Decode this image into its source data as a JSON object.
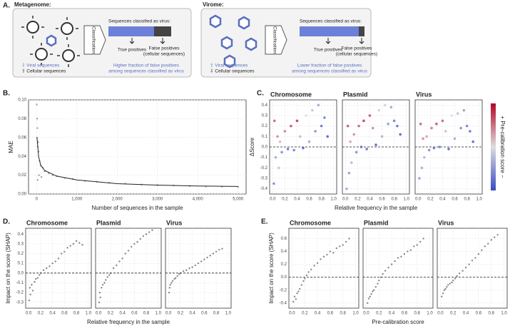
{
  "panel_a": {
    "label": "A.",
    "metagenome": {
      "title": "Metagenome:",
      "classification": "Classification",
      "classified": "Sequences classified as virus:",
      "true_pos": "True positives",
      "false_pos": [
        "False positives",
        "(cellular sequences)"
      ],
      "legend": [
        "⇩ Viral sequences",
        "⇧ Cellular sequences"
      ],
      "note": [
        "Higher fraction of false positives",
        "among sequences classified as virus"
      ]
    },
    "virome": {
      "title": "Virome:",
      "classification": "Classification",
      "classified": "Sequences classified as virus:",
      "true_pos": "True positives",
      "false_pos": [
        "False positives",
        "(cellular sequences)"
      ],
      "legend": [
        "⇧ Viral sequences",
        "⇩ Cellular sequences"
      ],
      "note": [
        "Lower fraction of false positives",
        "among sequences classified as virus"
      ]
    }
  },
  "chart_data": [
    {
      "type": "scatter",
      "label": "B.",
      "xlabel": "Number of sequences in the sample",
      "ylabel": "MAE",
      "grid": true,
      "point_color": "#777",
      "xlim": [
        -200,
        5200
      ],
      "ylim": [
        0,
        0.1
      ],
      "xticks": [
        0,
        {
          "value": 1000,
          "label": "1,000"
        },
        {
          "value": 2000,
          "label": "2,000"
        },
        {
          "value": 3000,
          "label": "3,000"
        },
        {
          "value": 4000,
          "label": "4,000"
        },
        {
          "value": 5000,
          "label": "5,000"
        }
      ],
      "yticks": [
        {
          "value": 0,
          "label": "0.00"
        },
        0.02,
        0.04,
        0.06,
        0.08,
        {
          "value": 0.1,
          "label": "0.10"
        }
      ],
      "facets": [
        {
          "x": [
            5,
            10,
            15,
            20,
            30,
            40,
            50,
            75,
            100,
            150,
            200,
            300,
            400,
            500,
            700,
            900,
            1200,
            1500,
            1800,
            2200,
            2600,
            3000,
            3400,
            3800,
            4200,
            4600,
            5000,
            25,
            60,
            120
          ],
          "y": [
            0.095,
            0.06,
            0.08,
            0.07,
            0.05,
            0.055,
            0.045,
            0.035,
            0.03,
            0.028,
            0.024,
            0.022,
            0.02,
            0.019,
            0.017,
            0.016,
            0.014,
            0.013,
            0.012,
            0.011,
            0.01,
            0.0095,
            0.009,
            0.0085,
            0.008,
            0.0078,
            0.0075,
            0.015,
            0.02,
            0.018
          ]
        }
      ],
      "fit": {
        "x": [
          10,
          50,
          100,
          200,
          500,
          1000,
          2000,
          3000,
          4000,
          5000
        ],
        "y": [
          0.06,
          0.04,
          0.031,
          0.025,
          0.019,
          0.015,
          0.011,
          0.0095,
          0.0085,
          0.008
        ],
        "color": "#222"
      }
    },
    {
      "type": "scatter",
      "label": "C.",
      "xlabel": "Relative frequency in the sample",
      "ylabel": "ΔScore",
      "grid": true,
      "reference_line": 0,
      "colormap": [
        "#3b4cc0",
        "#dddddd",
        "#b40426"
      ],
      "colorbar_label": "+ Pre-calibration score −",
      "xlim": [
        -0.05,
        1.05
      ],
      "ylim": [
        -0.45,
        0.45
      ],
      "xticks": [
        {
          "value": 0,
          "label": "0.0"
        },
        0.2,
        0.4,
        0.6,
        0.8,
        {
          "value": 1,
          "label": "1.0"
        }
      ],
      "yticks": [
        -0.4,
        -0.3,
        -0.2,
        -0.1,
        {
          "value": 0,
          "label": "0.0"
        },
        0.1,
        0.2,
        0.3,
        0.4
      ],
      "facets": [
        {
          "title": "Chromosome",
          "title_color": "#333",
          "x": [
            0.02,
            0.03,
            0.05,
            0.08,
            0.1,
            0.12,
            0.15,
            0.2,
            0.25,
            0.3,
            0.35,
            0.4,
            0.45,
            0.5,
            0.55,
            0.6,
            0.65,
            0.7,
            0.75,
            0.8,
            0.85,
            0.9
          ],
          "y": [
            -0.35,
            0.25,
            -0.1,
            0.1,
            -0.2,
            0.05,
            -0.05,
            0.15,
            -0.02,
            0.2,
            -0.03,
            0.25,
            0.1,
            -0.01,
            0.3,
            0.05,
            0.35,
            0.15,
            0.4,
            0.2,
            0.28,
            0.1
          ],
          "score": [
            0.2,
            0.8,
            0.3,
            0.7,
            0.4,
            0.6,
            0.2,
            0.75,
            0.1,
            0.85,
            0.15,
            0.9,
            0.6,
            0.05,
            0.5,
            0.3,
            0.4,
            0.2,
            0.3,
            0.1,
            0.15,
            0.05
          ]
        },
        {
          "title": "Plasmid",
          "title_color": "#d6456b",
          "x": [
            0.02,
            0.04,
            0.06,
            0.08,
            0.1,
            0.14,
            0.18,
            0.22,
            0.26,
            0.3,
            0.35,
            0.4,
            0.45,
            0.5,
            0.55,
            0.6,
            0.65,
            0.7,
            0.75,
            0.8,
            0.85,
            0.9
          ],
          "y": [
            -0.4,
            0.2,
            -0.25,
            0.05,
            -0.15,
            0.12,
            -0.05,
            0.2,
            0.0,
            0.25,
            -0.02,
            0.3,
            0.18,
            0.02,
            0.35,
            0.1,
            0.4,
            0.22,
            0.38,
            0.25,
            0.2,
            0.12
          ],
          "score": [
            0.3,
            0.85,
            0.25,
            0.65,
            0.35,
            0.7,
            0.2,
            0.8,
            0.1,
            0.9,
            0.1,
            0.85,
            0.7,
            0.05,
            0.55,
            0.35,
            0.45,
            0.25,
            0.3,
            0.15,
            0.1,
            0.05
          ]
        },
        {
          "title": "Virus",
          "title_color": "#5a6fc0",
          "x": [
            0.02,
            0.04,
            0.06,
            0.08,
            0.1,
            0.14,
            0.18,
            0.22,
            0.26,
            0.3,
            0.35,
            0.4,
            0.45,
            0.5,
            0.55,
            0.6,
            0.65,
            0.7,
            0.75,
            0.8,
            0.85,
            0.9
          ],
          "y": [
            -0.3,
            0.22,
            -0.2,
            0.08,
            -0.1,
            0.1,
            -0.03,
            0.18,
            -0.01,
            0.22,
            0.0,
            0.25,
            0.15,
            -0.02,
            0.3,
            0.08,
            0.32,
            0.18,
            0.35,
            0.2,
            0.15,
            0.05
          ],
          "score": [
            0.25,
            0.8,
            0.3,
            0.7,
            0.35,
            0.65,
            0.2,
            0.75,
            0.1,
            0.85,
            0.15,
            0.8,
            0.6,
            0.05,
            0.5,
            0.3,
            0.4,
            0.2,
            0.25,
            0.15,
            0.1,
            0.05
          ]
        }
      ]
    },
    {
      "type": "scatter",
      "label": "D.",
      "xlabel": "Relative frequency in the sample",
      "ylabel": "Impact on the score (SHAP)",
      "grid": true,
      "reference_line": 0,
      "point_color": "#555",
      "xlim": [
        -0.05,
        1.05
      ],
      "ylim": [
        -0.36,
        0.46
      ],
      "xticks": [
        {
          "value": 0,
          "label": "0.0"
        },
        0.2,
        0.4,
        0.6,
        0.8,
        {
          "value": 1,
          "label": "1.0"
        }
      ],
      "yticks": [
        -0.3,
        -0.2,
        -0.1,
        {
          "value": 0,
          "label": "0.0"
        },
        0.1,
        0.2,
        0.3,
        0.4
      ],
      "facets": [
        {
          "title": "Chromosome",
          "title_color": "#333",
          "x": [
            0.01,
            0.02,
            0.03,
            0.05,
            0.07,
            0.1,
            0.12,
            0.15,
            0.18,
            0.2,
            0.25,
            0.3,
            0.35,
            0.4,
            0.45,
            0.5,
            0.55,
            0.6,
            0.65,
            0.7,
            0.75,
            0.8,
            0.85,
            0.9
          ],
          "y": [
            -0.28,
            -0.15,
            -0.22,
            -0.12,
            -0.18,
            -0.09,
            -0.06,
            -0.05,
            -0.02,
            0.0,
            0.03,
            0.05,
            0.07,
            0.1,
            0.12,
            0.15,
            0.2,
            0.22,
            0.26,
            0.28,
            0.3,
            0.33,
            0.31,
            0.29
          ]
        },
        {
          "title": "Plasmid",
          "title_color": "#d6456b",
          "x": [
            0.01,
            0.02,
            0.03,
            0.05,
            0.07,
            0.1,
            0.12,
            0.15,
            0.18,
            0.2,
            0.25,
            0.3,
            0.35,
            0.4,
            0.45,
            0.5,
            0.55,
            0.6,
            0.65,
            0.7,
            0.75,
            0.8,
            0.85,
            0.9
          ],
          "y": [
            -0.3,
            -0.2,
            -0.25,
            -0.15,
            -0.12,
            -0.1,
            -0.07,
            -0.04,
            -0.02,
            0.0,
            0.05,
            0.08,
            0.12,
            0.15,
            0.2,
            0.23,
            0.27,
            0.3,
            0.32,
            0.35,
            0.38,
            0.4,
            0.42,
            0.44
          ]
        },
        {
          "title": "Virus",
          "title_color": "#5a6fc0",
          "x": [
            0.01,
            0.02,
            0.03,
            0.05,
            0.07,
            0.1,
            0.12,
            0.15,
            0.18,
            0.2,
            0.25,
            0.3,
            0.35,
            0.4,
            0.45,
            0.5,
            0.55,
            0.6,
            0.65,
            0.7,
            0.75,
            0.8,
            0.85,
            0.9
          ],
          "y": [
            -0.2,
            -0.15,
            -0.12,
            -0.1,
            -0.08,
            -0.06,
            -0.05,
            -0.03,
            -0.01,
            0.0,
            0.02,
            0.03,
            0.05,
            0.06,
            0.08,
            0.1,
            0.12,
            0.14,
            0.16,
            0.18,
            0.2,
            0.22,
            0.24,
            0.25
          ]
        }
      ]
    },
    {
      "type": "scatter",
      "label": "E.",
      "xlabel": "Pre-calibration score",
      "ylabel": "Impact on the score (SHAP)",
      "grid": true,
      "reference_line": 0,
      "point_color": "#555",
      "xlim": [
        -0.05,
        1.05
      ],
      "ylim": [
        -0.48,
        0.76
      ],
      "xticks": [
        {
          "value": 0,
          "label": "0.0"
        },
        0.2,
        0.4,
        0.6,
        0.8,
        {
          "value": 1,
          "label": "1.0"
        }
      ],
      "yticks": [
        -0.4,
        -0.2,
        {
          "value": 0,
          "label": "0.0"
        },
        0.2,
        0.4,
        0.6
      ],
      "facets": [
        {
          "title": "Chromosome",
          "title_color": "#333",
          "x": [
            0.02,
            0.04,
            0.06,
            0.08,
            0.1,
            0.12,
            0.15,
            0.18,
            0.2,
            0.23,
            0.26,
            0.3,
            0.35,
            0.4,
            0.45,
            0.5,
            0.55,
            0.6,
            0.65,
            0.7,
            0.75,
            0.8,
            0.85,
            0.9
          ],
          "y": [
            -0.38,
            -0.3,
            -0.34,
            -0.25,
            -0.22,
            -0.18,
            -0.12,
            -0.06,
            -0.02,
            0.03,
            0.08,
            0.12,
            0.18,
            0.22,
            0.28,
            0.32,
            0.35,
            0.4,
            0.38,
            0.45,
            0.48,
            0.5,
            0.55,
            0.6
          ]
        },
        {
          "title": "Plasmid",
          "title_color": "#d6456b",
          "x": [
            0.02,
            0.04,
            0.06,
            0.08,
            0.1,
            0.12,
            0.15,
            0.18,
            0.2,
            0.23,
            0.26,
            0.3,
            0.35,
            0.4,
            0.45,
            0.5,
            0.55,
            0.6,
            0.65,
            0.7,
            0.75,
            0.8,
            0.85,
            0.9
          ],
          "y": [
            -0.4,
            -0.33,
            -0.3,
            -0.26,
            -0.22,
            -0.2,
            -0.15,
            -0.1,
            -0.05,
            0.0,
            0.05,
            0.1,
            0.15,
            0.2,
            0.25,
            0.3,
            0.32,
            0.36,
            0.4,
            0.42,
            0.48,
            0.5,
            0.55,
            0.6
          ]
        },
        {
          "title": "Virus",
          "title_color": "#5a6fc0",
          "x": [
            0.02,
            0.04,
            0.06,
            0.08,
            0.1,
            0.12,
            0.15,
            0.18,
            0.2,
            0.23,
            0.26,
            0.3,
            0.35,
            0.4,
            0.45,
            0.5,
            0.55,
            0.6,
            0.65,
            0.7,
            0.75,
            0.8,
            0.85,
            0.9
          ],
          "y": [
            -0.3,
            -0.25,
            -0.2,
            -0.18,
            -0.15,
            -0.12,
            -0.1,
            -0.08,
            -0.05,
            -0.02,
            0.02,
            0.06,
            0.1,
            0.15,
            0.2,
            0.26,
            0.3,
            0.36,
            0.42,
            0.48,
            0.52,
            0.58,
            0.62,
            0.66
          ]
        }
      ]
    }
  ]
}
